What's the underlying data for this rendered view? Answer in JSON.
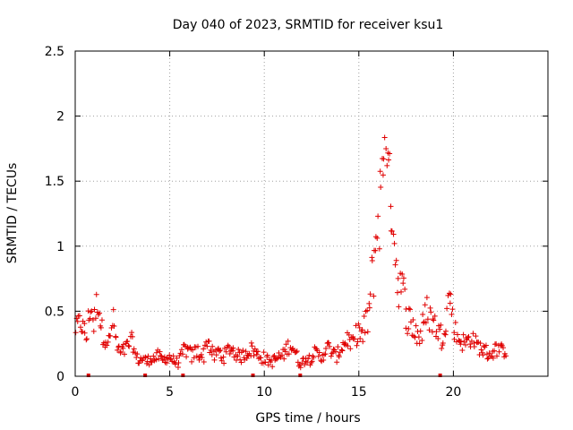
{
  "chart_data": {
    "type": "scatter",
    "title": "Day 040 of 2023, SRMTID for receiver ksu1",
    "xlabel": "GPS time / hours",
    "ylabel": "SRMTID / TECUs",
    "xlim": [
      0,
      25
    ],
    "ylim": [
      0,
      2.5
    ],
    "x_ticks": [
      0,
      5,
      10,
      15,
      20
    ],
    "x_tick_labels": [
      "0",
      "5",
      "10",
      "15",
      "20"
    ],
    "y_ticks": [
      0,
      0.5,
      1,
      1.5,
      2,
      2.5
    ],
    "y_tick_labels": [
      "0",
      "0.5",
      "1",
      "1.5",
      "2",
      "2.5"
    ],
    "grid": true,
    "marker": "+",
    "color": "#e00000",
    "series": [
      {
        "name": "SRMTID",
        "x": [
          0.0,
          0.2,
          0.4,
          0.6,
          0.8,
          1.0,
          1.2,
          1.4,
          1.6,
          1.8,
          2.0,
          2.2,
          2.4,
          2.6,
          2.8,
          3.0,
          3.2,
          3.4,
          3.6,
          3.8,
          4.0,
          4.2,
          4.4,
          4.6,
          4.8,
          5.0,
          5.2,
          5.4,
          5.6,
          5.8,
          6.0,
          6.2,
          6.4,
          6.6,
          6.8,
          7.0,
          7.2,
          7.4,
          7.6,
          7.8,
          8.0,
          8.2,
          8.4,
          8.6,
          8.8,
          9.0,
          9.2,
          9.4,
          9.6,
          9.8,
          10.0,
          10.2,
          10.4,
          10.6,
          10.8,
          11.0,
          11.2,
          11.4,
          11.6,
          11.8,
          12.0,
          12.2,
          12.4,
          12.6,
          12.8,
          13.0,
          13.2,
          13.4,
          13.6,
          13.8,
          14.0,
          14.2,
          14.4,
          14.6,
          14.8,
          15.0,
          15.2,
          15.4,
          15.6,
          15.8,
          16.0,
          16.2,
          16.4,
          16.6,
          16.8,
          17.0,
          17.2,
          17.4,
          17.6,
          17.8,
          18.0,
          18.2,
          18.4,
          18.6,
          18.8,
          19.0,
          19.2,
          19.4,
          19.6,
          19.8,
          20.0,
          20.2,
          20.4,
          20.6,
          20.8,
          21.0,
          21.2,
          21.4,
          21.6,
          21.8,
          22.0,
          22.2,
          22.4,
          22.6,
          22.8
        ],
        "y": [
          0.35,
          0.42,
          0.38,
          0.3,
          0.55,
          0.4,
          0.62,
          0.35,
          0.3,
          0.25,
          0.45,
          0.22,
          0.18,
          0.2,
          0.24,
          0.28,
          0.15,
          0.12,
          0.14,
          0.11,
          0.15,
          0.13,
          0.16,
          0.12,
          0.14,
          0.15,
          0.12,
          0.1,
          0.14,
          0.22,
          0.18,
          0.15,
          0.2,
          0.17,
          0.16,
          0.3,
          0.18,
          0.15,
          0.2,
          0.14,
          0.18,
          0.22,
          0.19,
          0.16,
          0.15,
          0.18,
          0.2,
          0.21,
          0.17,
          0.15,
          0.14,
          0.12,
          0.11,
          0.13,
          0.15,
          0.16,
          0.22,
          0.25,
          0.2,
          0.12,
          0.1,
          0.15,
          0.13,
          0.18,
          0.17,
          0.14,
          0.2,
          0.22,
          0.18,
          0.15,
          0.2,
          0.25,
          0.3,
          0.22,
          0.3,
          0.35,
          0.3,
          0.4,
          0.55,
          0.9,
          1.2,
          1.4,
          1.95,
          1.45,
          1.3,
          0.8,
          0.7,
          0.6,
          0.45,
          0.4,
          0.35,
          0.3,
          0.38,
          0.5,
          0.45,
          0.4,
          0.35,
          0.3,
          0.45,
          0.65,
          0.4,
          0.3,
          0.28,
          0.25,
          0.28,
          0.3,
          0.25,
          0.22,
          0.2,
          0.18,
          0.17,
          0.2,
          0.22,
          0.19,
          0.2
        ],
        "spread": [
          0.06,
          0.08,
          0.08,
          0.1,
          0.14,
          0.12,
          0.14,
          0.1,
          0.08,
          0.08,
          0.1,
          0.07,
          0.05,
          0.06,
          0.06,
          0.06,
          0.04,
          0.04,
          0.04,
          0.04,
          0.05,
          0.04,
          0.05,
          0.04,
          0.04,
          0.05,
          0.04,
          0.04,
          0.05,
          0.07,
          0.06,
          0.06,
          0.07,
          0.06,
          0.06,
          0.07,
          0.06,
          0.05,
          0.06,
          0.05,
          0.06,
          0.06,
          0.06,
          0.05,
          0.05,
          0.06,
          0.06,
          0.06,
          0.05,
          0.05,
          0.05,
          0.04,
          0.04,
          0.05,
          0.05,
          0.05,
          0.06,
          0.07,
          0.06,
          0.05,
          0.04,
          0.05,
          0.05,
          0.05,
          0.05,
          0.05,
          0.06,
          0.06,
          0.05,
          0.05,
          0.06,
          0.07,
          0.08,
          0.07,
          0.08,
          0.1,
          0.12,
          0.15,
          0.2,
          0.3,
          0.35,
          0.35,
          0.1,
          0.3,
          0.3,
          0.25,
          0.2,
          0.18,
          0.15,
          0.12,
          0.12,
          0.12,
          0.12,
          0.14,
          0.12,
          0.1,
          0.1,
          0.1,
          0.12,
          0.1,
          0.1,
          0.08,
          0.08,
          0.07,
          0.07,
          0.07,
          0.06,
          0.06,
          0.06,
          0.06,
          0.05,
          0.06,
          0.06,
          0.05,
          0.05
        ],
        "outliers": [
          [
            0.7,
            0.0
          ],
          [
            3.7,
            0.0
          ],
          [
            5.7,
            0.0
          ],
          [
            9.4,
            0.0
          ],
          [
            11.9,
            0.0
          ],
          [
            19.3,
            0.0
          ]
        ]
      }
    ]
  }
}
